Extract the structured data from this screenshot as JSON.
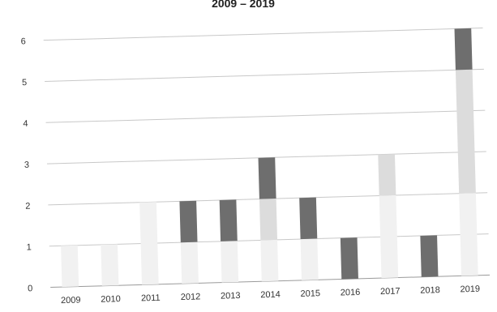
{
  "chart_data": {
    "type": "bar",
    "stacked": true,
    "title": "2009 – 2019",
    "categories": [
      "2009",
      "2010",
      "2011",
      "2012",
      "2013",
      "2014",
      "2015",
      "2016",
      "2017",
      "2018",
      "2019"
    ],
    "series": [
      {
        "values": [
          1,
          1,
          2,
          1,
          1,
          1,
          1,
          0,
          2,
          0,
          2
        ]
      },
      {
        "values": [
          0,
          0,
          0,
          0,
          0,
          1,
          0,
          0,
          1,
          0,
          3
        ]
      },
      {
        "values": [
          0,
          0,
          0,
          1,
          1,
          1,
          1,
          1,
          0,
          1,
          1
        ]
      }
    ],
    "series_colors": [
      "#f1f1f1",
      "#dcdcdc",
      "#6e6e6e"
    ],
    "ylim": [
      0,
      6
    ],
    "yticks": [
      "0",
      "1",
      "2",
      "3",
      "4",
      "5",
      "6"
    ],
    "grid": true,
    "xlabel": "",
    "ylabel": ""
  }
}
